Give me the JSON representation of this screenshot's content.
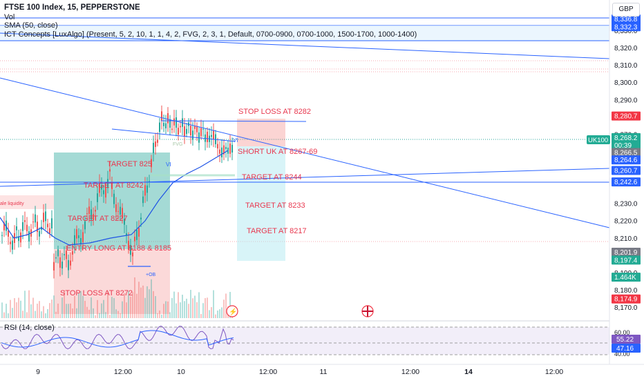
{
  "header": {
    "title": "FTSE 100 Index, 15, PEPPERSTONE",
    "vol": "Vol",
    "sma": "SMA (50, close)",
    "ict": "ICT Concepts [LuxAlgo] (Present, 5, 2, 10, 1, 1, 4, 2, FVG, 2, 3, 1, Default, 0700-0900, 0700-1000, 1500-1700, 1000-1400)",
    "currency": "GBP"
  },
  "rsi_label": "RSI (14, close)",
  "colors": {
    "up": "#26a69a",
    "down": "#ef5350",
    "trendline": "#2962ff",
    "annotation": "#e8384f",
    "sma": "#1e53e5",
    "rsi": "#7e57c2"
  },
  "annotations": {
    "stop_loss_top": "STOP LOSS AT 8282",
    "short": "SHORT UK AT 8267-69",
    "target_8244": "TARGET AT 8244",
    "target_8233": "TARGET AT 8233",
    "target_8217": "TARGET AT 8217",
    "target_825": "TARGET 825",
    "target_8242": "TARGET AT 8242",
    "target_8227": "TARGET AT 8227",
    "entry_long": "ENTRY LONG AT 8188 & 8185",
    "stop_loss_bottom": "STOP LOSS AT 8272",
    "liquidity": "ale liquidity",
    "vi1": "VI",
    "vi2": "VI",
    "ob": "+OB",
    "fvg": "FVG"
  },
  "price_axis": {
    "ticks": [
      "8,330.0",
      "8,320.0",
      "8,310.0",
      "8,300.0",
      "8,290.0",
      "8,270.0",
      "8,230.0",
      "8,220.0",
      "8,210.0",
      "8,190.0",
      "8,180.0",
      "8,170.0"
    ],
    "tick_values": [
      8330,
      8320,
      8310,
      8300,
      8290,
      8270,
      8230,
      8220,
      8210,
      8190,
      8180,
      8170
    ],
    "badges": [
      {
        "text": "8,336.8",
        "value": 8336.8,
        "bg": "#2962ff"
      },
      {
        "text": "8,332.3",
        "value": 8332.3,
        "bg": "#2962ff"
      },
      {
        "text": "8,280.7",
        "value": 8280.7,
        "bg": "#f23645"
      },
      {
        "text": "8,268.2",
        "value": 8268.2,
        "bg": "#22ab94"
      },
      {
        "text": "00:39",
        "value": 8263.8,
        "bg": "#22ab94"
      },
      {
        "text": "8,266.5",
        "value": 8259.6,
        "bg": "#787b86"
      },
      {
        "text": "8,264.6",
        "value": 8255.3,
        "bg": "#2962ff"
      },
      {
        "text": "8,260.7",
        "value": 8249.2,
        "bg": "#2962ff"
      },
      {
        "text": "8,242.6",
        "value": 8242.6,
        "bg": "#2962ff"
      },
      {
        "text": "8,201.9",
        "value": 8201.9,
        "bg": "#787b86"
      },
      {
        "text": "8,197.4",
        "value": 8197.4,
        "bg": "#22ab94"
      },
      {
        "text": "1.464K",
        "value": 8187.5,
        "bg": "#22ab94"
      },
      {
        "text": "8,174.9",
        "value": 8174.9,
        "bg": "#f23645"
      }
    ],
    "symbol_tag": "UK100"
  },
  "rsi_axis": {
    "badges": [
      {
        "text": "55.22",
        "bg": "#7e57c2"
      },
      {
        "text": "47.16",
        "bg": "#2962ff"
      }
    ],
    "top_tick": "60.00",
    "bottom_tick": "40.00"
  },
  "time_axis": {
    "ticks": [
      {
        "label": "9",
        "bold": false
      },
      {
        "label": "12:00",
        "bold": false
      },
      {
        "label": "10",
        "bold": false
      },
      {
        "label": "12:00",
        "bold": false
      },
      {
        "label": "11",
        "bold": false
      },
      {
        "label": "12:00",
        "bold": false
      },
      {
        "label": "14",
        "bold": true
      },
      {
        "label": "12:00",
        "bold": false
      }
    ]
  },
  "chart_data": {
    "type": "candlestick",
    "title": "FTSE 100 Index, 15, PEPPERSTONE",
    "ylim": [
      8165,
      8340
    ],
    "price_levels": [
      8336.8,
      8332.3,
      8280.7,
      8268.2,
      8266.5,
      8264.6,
      8260.7,
      8242.6,
      8201.9,
      8197.4,
      8174.9
    ],
    "rsi": {
      "last": 55.22,
      "ma": 47.16,
      "bands": [
        40,
        60
      ]
    },
    "volume_last": "1.464K"
  }
}
